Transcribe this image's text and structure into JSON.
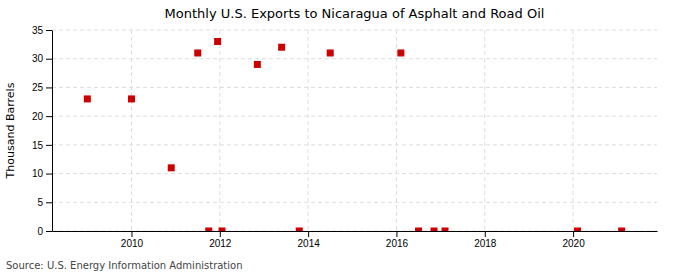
{
  "chart_data": {
    "type": "scatter",
    "title": "Monthly U.S. Exports to Nicaragua of Asphalt and Road Oil",
    "ylabel": "Thousand Barrels",
    "annotations": [
      "Source: U.S. Energy Information Administration"
    ],
    "x": [
      2009.0,
      2010.0,
      2010.9,
      2011.5,
      2011.95,
      2011.75,
      2012.05,
      2012.85,
      2013.4,
      2013.8,
      2014.5,
      2016.1,
      2016.5,
      2016.85,
      2017.1,
      2020.1,
      2021.1
    ],
    "values": [
      23,
      23,
      11,
      31,
      33,
      0,
      0,
      29,
      32,
      0,
      31,
      31,
      0,
      0,
      0,
      0,
      0
    ],
    "color": "#cc0000",
    "marker": "square",
    "xlim": [
      2008.2,
      2021.9
    ],
    "xticks": [
      2010,
      2012,
      2014,
      2016,
      2018,
      2020
    ],
    "ylim": [
      0,
      35
    ],
    "yticks": [
      0,
      5,
      10,
      15,
      20,
      25,
      30,
      35
    ],
    "grid": true
  }
}
